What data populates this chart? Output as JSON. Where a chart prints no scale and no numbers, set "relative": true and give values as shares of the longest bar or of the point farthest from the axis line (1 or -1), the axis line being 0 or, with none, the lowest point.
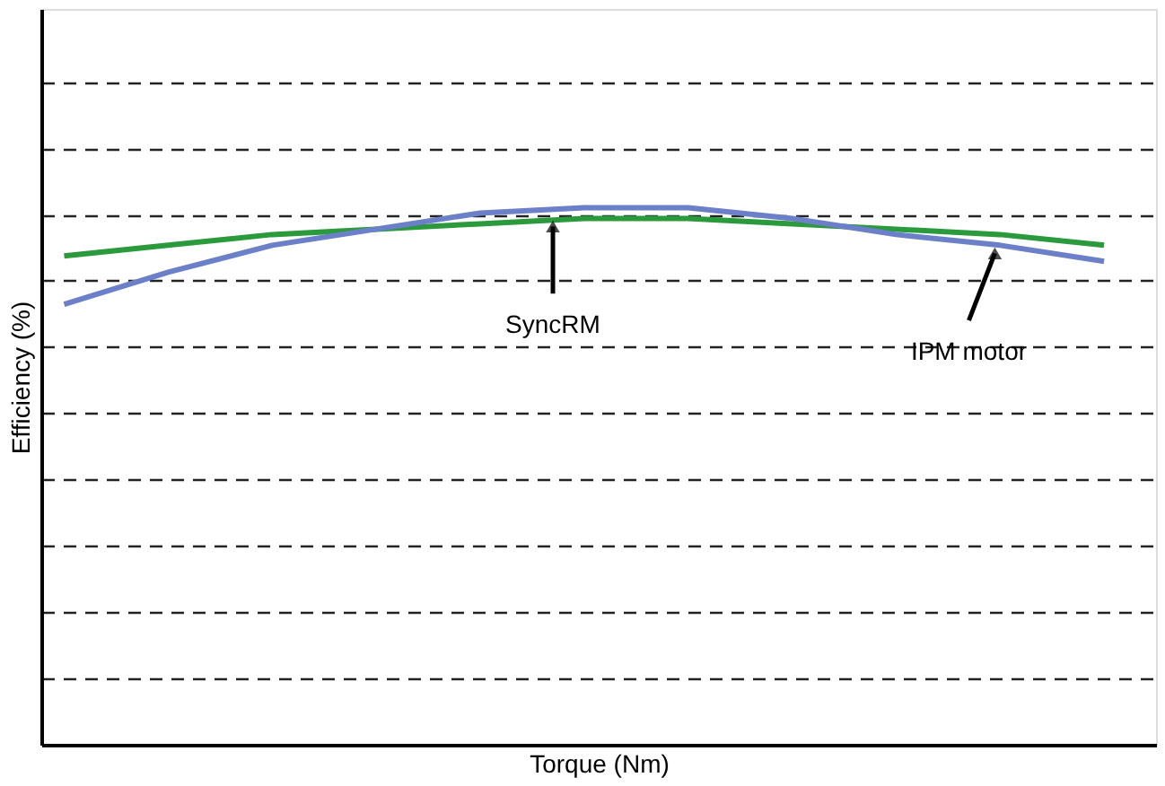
{
  "chart_data": {
    "type": "line",
    "relative": true,
    "xlabel": "Torque (Nm)",
    "ylabel": "Efficiency (%)",
    "grid": "y",
    "tick_labels": false,
    "legend": false,
    "line_style": "solid",
    "marker": "none",
    "categories": [
      null,
      null,
      null,
      null,
      null,
      null,
      null,
      null,
      null,
      null,
      null
    ],
    "series": [
      {
        "name": "SyncRM",
        "color": "#2b9a3c",
        "values": [
          0.91,
          0.93,
          0.95,
          0.96,
          0.97,
          0.98,
          0.98,
          0.97,
          0.96,
          0.95,
          0.93
        ]
      },
      {
        "name": "IPM motor",
        "color": "#6b80c8",
        "values": [
          0.82,
          0.88,
          0.93,
          0.96,
          0.99,
          1,
          1,
          0.98,
          0.95,
          0.93,
          0.9
        ]
      }
    ]
  }
}
